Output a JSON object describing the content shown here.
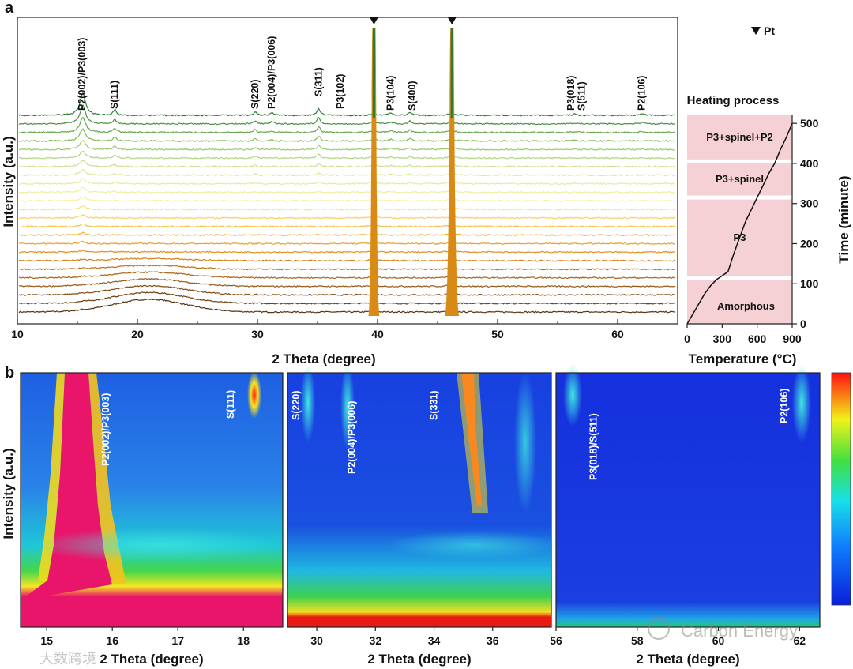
{
  "chart_data": [
    {
      "panel": "a",
      "type": "line",
      "title": "",
      "xlabel": "2 Theta (degree)",
      "ylabel": "Intensity (a.u.)",
      "xlim": [
        10,
        65
      ],
      "x_ticks": [
        "10",
        "20",
        "30",
        "40",
        "50",
        "60"
      ],
      "series_count": 24,
      "legend": "▼ Pt",
      "pt_peaks": [
        39.7,
        46.2
      ],
      "peak_labels": [
        {
          "text": "P2(002)/P3(003)",
          "x": 15.4
        },
        {
          "text": "S(111)",
          "x": 18.1
        },
        {
          "text": "S(220)",
          "x": 29.8
        },
        {
          "text": "P2(004)/P3(006)",
          "x": 31.2
        },
        {
          "text": "S(311)",
          "x": 35.1
        },
        {
          "text": "P3(102)",
          "x": 36.9
        },
        {
          "text": "P3(104)",
          "x": 41.1
        },
        {
          "text": "S(400)",
          "x": 42.7
        },
        {
          "text": "P3(018)",
          "x": 56.2
        },
        {
          "text": "S(511)",
          "x": 56.6
        },
        {
          "text": "P2(106)",
          "x": 62.0
        }
      ]
    },
    {
      "panel": "a-right",
      "type": "line",
      "title": "Heating process",
      "xlabel": "Temperature (°C)",
      "ylabel": "Time (minute)",
      "xlim": [
        0,
        900
      ],
      "ylim": [
        0,
        520
      ],
      "x_ticks": [
        "0",
        "300",
        "600",
        "900"
      ],
      "y_ticks": [
        "0",
        "100",
        "200",
        "300",
        "400",
        "500"
      ],
      "phases": [
        {
          "name": "Amorphous",
          "t_start": 0,
          "t_end": 110
        },
        {
          "name": "P3",
          "t_start": 120,
          "t_end": 310
        },
        {
          "name": "P3+spinel",
          "t_start": 320,
          "t_end": 400
        },
        {
          "name": "P3+spinel+P2",
          "t_start": 410,
          "t_end": 520
        }
      ],
      "profile": {
        "temperature": [
          0,
          50,
          100,
          150,
          200,
          250,
          300,
          350,
          400,
          450,
          500,
          550,
          600,
          650,
          700,
          750,
          800,
          850,
          900
        ],
        "time": [
          0,
          25,
          50,
          75,
          95,
          110,
          120,
          130,
          175,
          215,
          255,
          285,
          315,
          345,
          375,
          400,
          435,
          465,
          500
        ]
      }
    },
    {
      "panel": "b",
      "type": "heatmap",
      "ylabel": "Intensity (a.u.)",
      "subplots": [
        {
          "xlabel": "2 Theta (degree)",
          "xlim": [
            14.6,
            18.6
          ],
          "x_ticks": [
            "15",
            "16",
            "17",
            "18"
          ],
          "labels": [
            "P2(002)/P3(003)",
            "S(111)"
          ]
        },
        {
          "xlabel": "2 Theta (degree)",
          "xlim": [
            29.0,
            38.0
          ],
          "x_ticks": [
            "30",
            "32",
            "34",
            "36"
          ],
          "labels": [
            "S(220)",
            "P2(004)/P3(006)",
            "S(331)"
          ]
        },
        {
          "xlabel": "2 Theta (degree)",
          "xlim": [
            56.0,
            62.5
          ],
          "x_ticks": [
            "56",
            "58",
            "60",
            "62"
          ],
          "labels": [
            "P3(018)/S(511)",
            "P2(106)"
          ]
        }
      ]
    }
  ],
  "panel_labels": {
    "a": "a",
    "b": "b"
  },
  "watermarks": {
    "left": "大数跨境",
    "right": "Carbon Energy"
  },
  "colors": {
    "green": "#2e7d32",
    "brown": "#6b4414",
    "pink": "#f5d0d5",
    "hot": "#e8156a"
  }
}
